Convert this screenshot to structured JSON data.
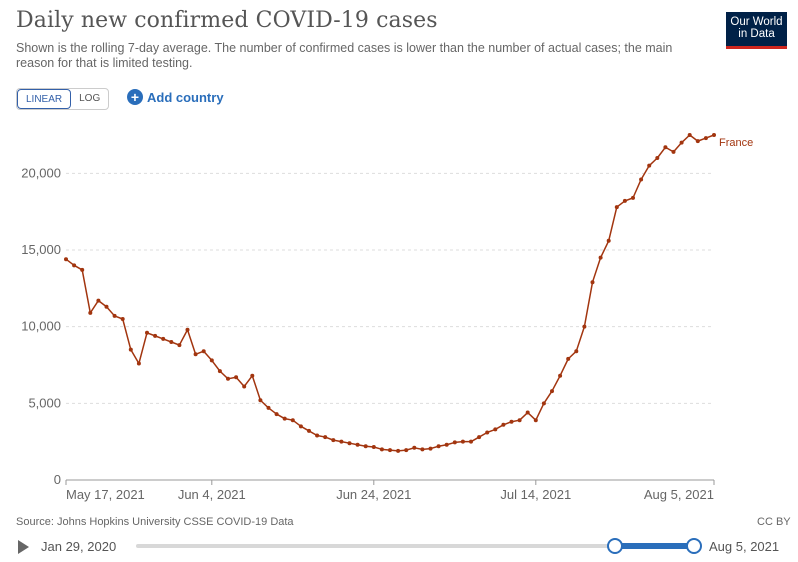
{
  "header": {
    "title": "Daily new confirmed COVID-19 cases",
    "subtitle": "Shown is the rolling 7-day average. The number of confirmed cases is lower than the number of actual cases; the main reason for that is limited testing.",
    "logo_line1": "Our World",
    "logo_line2": "in Data"
  },
  "controls": {
    "linear_label": "LINEAR",
    "log_label": "LOG",
    "add_country_label": "Add country"
  },
  "footer": {
    "source": "Source: Johns Hopkins University CSSE COVID-19 Data",
    "license": "CC BY"
  },
  "timeline": {
    "start_label": "Jan 29, 2020",
    "end_label": "Aug 5, 2021"
  },
  "colors": {
    "series": "#a2350f",
    "accent": "#2a6ebb",
    "grid": "#dddddd"
  },
  "chart_data": {
    "type": "line",
    "title": "Daily new confirmed COVID-19 cases",
    "ylim": [
      0,
      22500
    ],
    "yticks": [
      0,
      5000,
      10000,
      15000,
      20000
    ],
    "ytick_labels": [
      "0",
      "5,000",
      "10,000",
      "15,000",
      "20,000"
    ],
    "xticks": [
      "2021-05-17",
      "2021-06-04",
      "2021-06-24",
      "2021-07-14",
      "2021-08-05"
    ],
    "xtick_labels": [
      "May 17, 2021",
      "Jun 4, 2021",
      "Jun 24, 2021",
      "Jul 14, 2021",
      "Aug 5, 2021"
    ],
    "xlim": [
      "2021-05-17",
      "2021-08-05"
    ],
    "grid": true,
    "series": [
      {
        "name": "France",
        "x": [
          "2021-05-17",
          "2021-05-18",
          "2021-05-19",
          "2021-05-20",
          "2021-05-21",
          "2021-05-22",
          "2021-05-23",
          "2021-05-24",
          "2021-05-25",
          "2021-05-26",
          "2021-05-27",
          "2021-05-28",
          "2021-05-29",
          "2021-05-30",
          "2021-05-31",
          "2021-06-01",
          "2021-06-02",
          "2021-06-03",
          "2021-06-04",
          "2021-06-05",
          "2021-06-06",
          "2021-06-07",
          "2021-06-08",
          "2021-06-09",
          "2021-06-10",
          "2021-06-11",
          "2021-06-12",
          "2021-06-13",
          "2021-06-14",
          "2021-06-15",
          "2021-06-16",
          "2021-06-17",
          "2021-06-18",
          "2021-06-19",
          "2021-06-20",
          "2021-06-21",
          "2021-06-22",
          "2021-06-23",
          "2021-06-24",
          "2021-06-25",
          "2021-06-26",
          "2021-06-27",
          "2021-06-28",
          "2021-06-29",
          "2021-06-30",
          "2021-07-01",
          "2021-07-02",
          "2021-07-03",
          "2021-07-04",
          "2021-07-05",
          "2021-07-06",
          "2021-07-07",
          "2021-07-08",
          "2021-07-09",
          "2021-07-10",
          "2021-07-11",
          "2021-07-12",
          "2021-07-13",
          "2021-07-14",
          "2021-07-15",
          "2021-07-16",
          "2021-07-17",
          "2021-07-18",
          "2021-07-19",
          "2021-07-20",
          "2021-07-21",
          "2021-07-22",
          "2021-07-23",
          "2021-07-24",
          "2021-07-25",
          "2021-07-26",
          "2021-07-27",
          "2021-07-28",
          "2021-07-29",
          "2021-07-30",
          "2021-07-31",
          "2021-08-01",
          "2021-08-02",
          "2021-08-03",
          "2021-08-04",
          "2021-08-05"
        ],
        "values": [
          14400,
          14000,
          13700,
          10900,
          11700,
          11300,
          10700,
          10500,
          8500,
          7600,
          9600,
          9400,
          9200,
          9000,
          8800,
          9800,
          8200,
          8400,
          7800,
          7100,
          6600,
          6700,
          6100,
          6800,
          5200,
          4700,
          4300,
          4000,
          3900,
          3500,
          3200,
          2900,
          2800,
          2600,
          2500,
          2400,
          2300,
          2200,
          2150,
          2000,
          1950,
          1900,
          1950,
          2100,
          2000,
          2050,
          2200,
          2300,
          2450,
          2500,
          2500,
          2800,
          3100,
          3300,
          3600,
          3800,
          3900,
          4400,
          3900,
          5000,
          5800,
          6800,
          7900,
          8400,
          10000,
          12900,
          14500,
          15600,
          17800,
          18200,
          18400,
          19600,
          20500,
          21000,
          21700,
          21400,
          22000,
          22500,
          22100,
          22300,
          22500
        ]
      }
    ]
  }
}
